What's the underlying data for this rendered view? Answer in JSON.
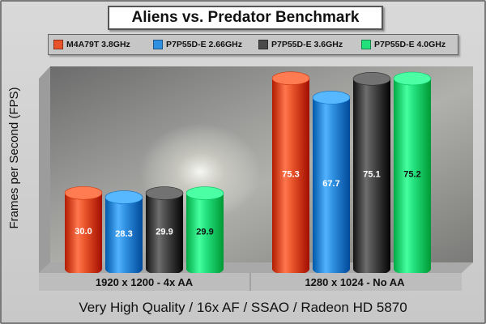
{
  "chart_data": {
    "type": "bar",
    "title": "Aliens vs. Predator Benchmark",
    "ylabel": "Frames per Second (FPS)",
    "footer": "Very High Quality / 16x AF / SSAO / Radeon HD 5870",
    "categories": [
      "1920 x 1200 - 4x AA",
      "1280 x 1024 - No AA"
    ],
    "ylim": [
      0,
      80
    ],
    "legend_position": "top",
    "series": [
      {
        "name": "M4A79T 3.8GHz",
        "color": "#e8532a",
        "values": [
          30.0,
          75.3
        ]
      },
      {
        "name": "P7P55D-E 2.66GHz",
        "color": "#2f8fe0",
        "values": [
          28.3,
          67.7
        ]
      },
      {
        "name": "P7P55D-E 3.6GHz",
        "color": "#4a4a4a",
        "values": [
          29.9,
          75.1
        ]
      },
      {
        "name": "P7P55D-E 4.0GHz",
        "color": "#22e07c",
        "values": [
          29.9,
          75.2
        ]
      }
    ],
    "value_labels": [
      [
        "30.0",
        "75.3"
      ],
      [
        "28.3",
        "67.7"
      ],
      [
        "29.9",
        "75.1"
      ],
      [
        "29.9",
        "75.2"
      ]
    ]
  }
}
